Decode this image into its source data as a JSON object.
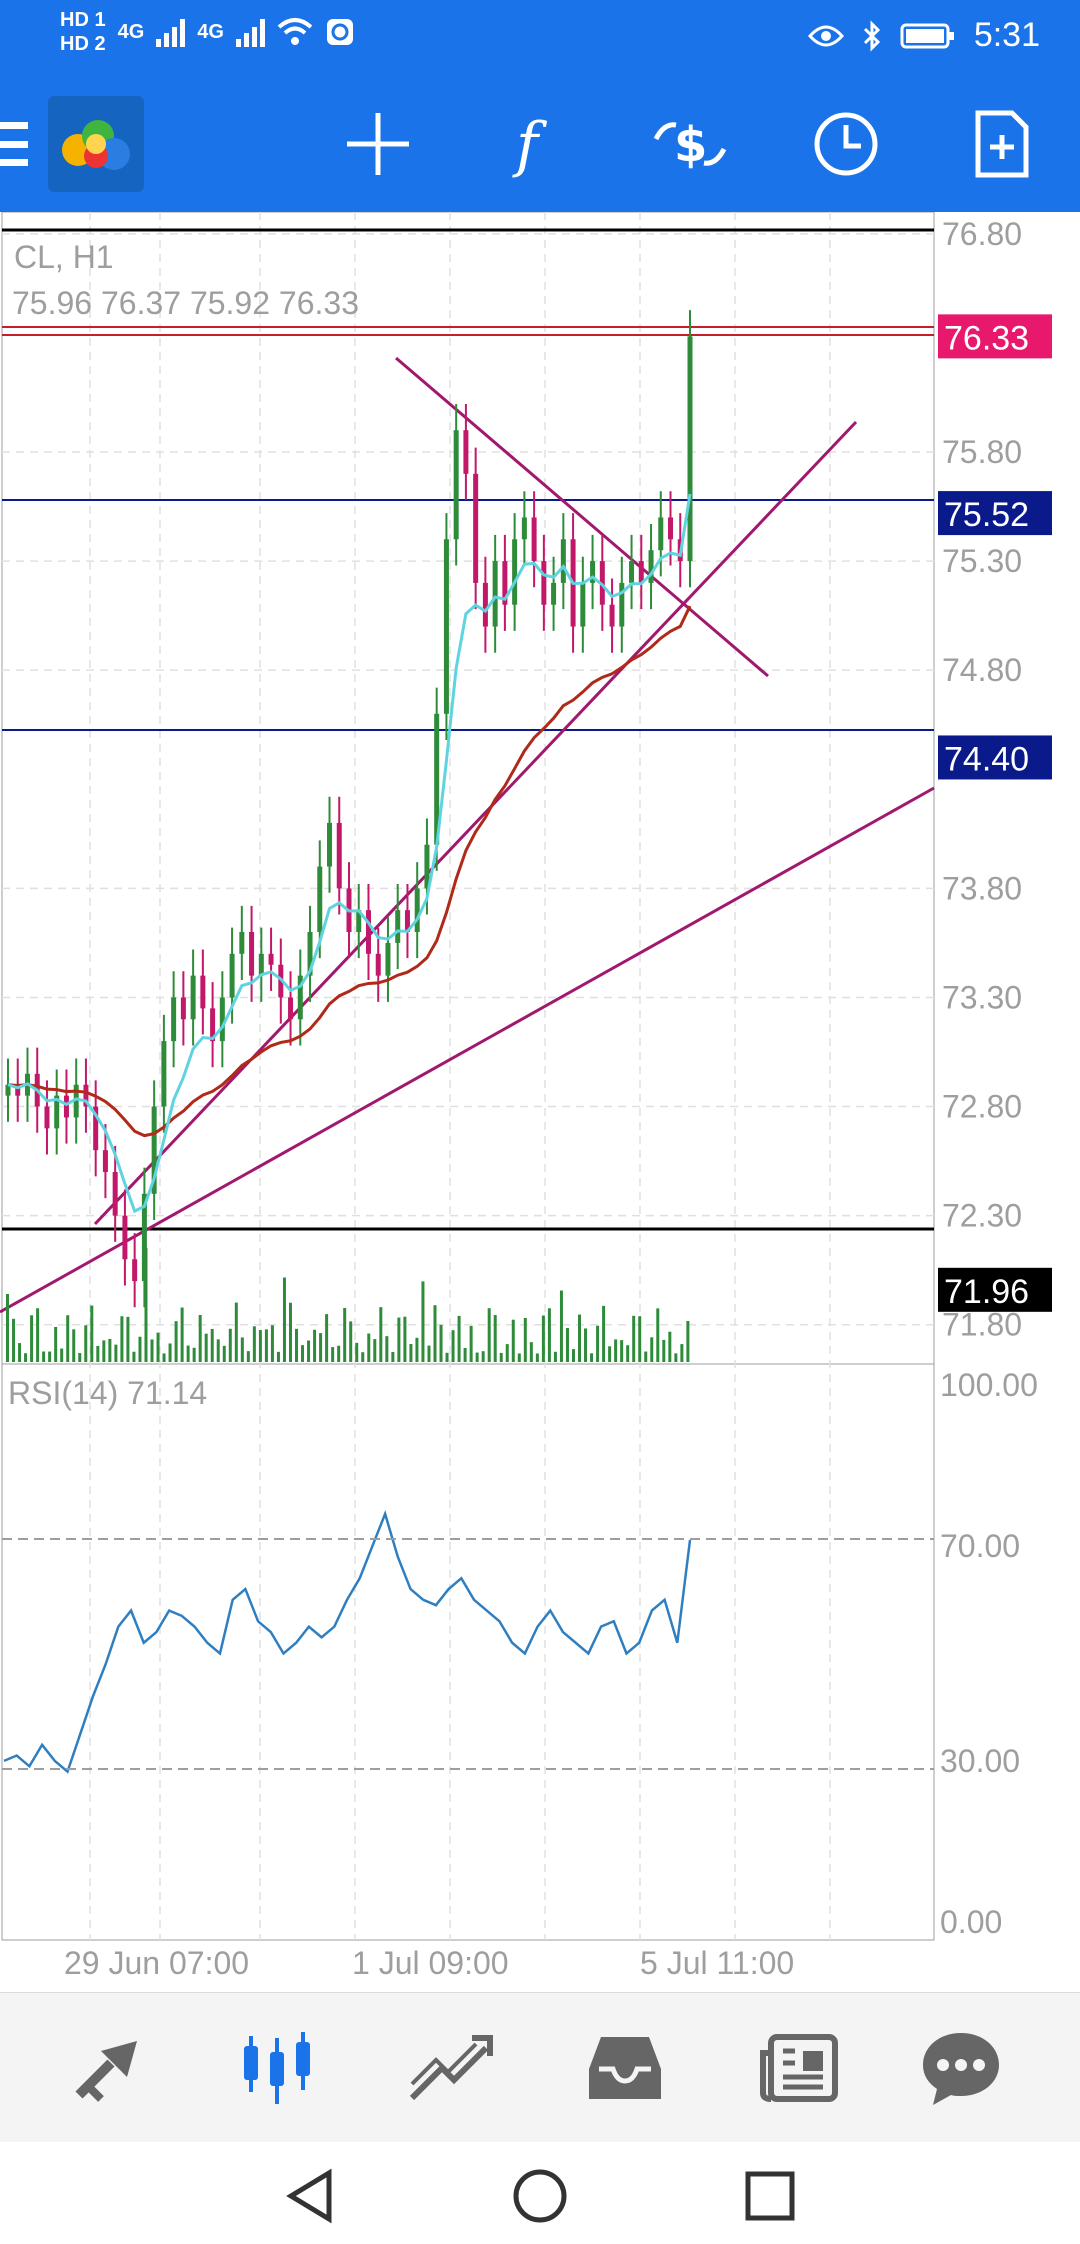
{
  "status_bar": {
    "hd1": "HD 1",
    "hd2": "HD 2",
    "net1": "4G",
    "net2": "4G",
    "time": "5:31"
  },
  "toolbar": {
    "icons": [
      "menu-icon",
      "metatrader-logo",
      "crosshair-icon",
      "indicators-f-icon",
      "trade-dollar-icon",
      "clock-icon",
      "new-document-icon"
    ]
  },
  "chart": {
    "symbol": "CL, H1",
    "ohlc": "75.96 76.37 75.92 76.33",
    "price_axis": [
      "76.80",
      "75.80",
      "75.30",
      "74.80",
      "73.80",
      "73.30",
      "72.80",
      "72.30",
      "71.80"
    ],
    "price_labels": [
      {
        "value": "76.33",
        "color": "#e8186d"
      },
      {
        "value": "75.52",
        "color": "#0a1a8a"
      },
      {
        "value": "74.40",
        "color": "#0a1a8a"
      },
      {
        "value": "71.96",
        "color": "#000000"
      }
    ],
    "rsi_label": "RSI(14) 71.14",
    "rsi_axis": [
      "100.00",
      "70.00",
      "30.00",
      "0.00"
    ],
    "time_axis": [
      "29 Jun 07:00",
      "1 Jul 09:00",
      "5 Jul 11:00"
    ],
    "colors": {
      "bull": "#2e8b3a",
      "bear": "#c2186a",
      "ma_fast": "#5fd4e0",
      "ma_slow": "#b02a1a",
      "trend": "#a0196e",
      "rsi": "#2f7fc0"
    }
  },
  "chart_data": {
    "type": "candlestick",
    "ylim": [
      71.62,
      76.9
    ],
    "rsi_ylim": [
      0,
      100
    ],
    "candles_sample_source": "visual estimate",
    "closes": [
      72.9,
      72.85,
      72.95,
      72.8,
      72.7,
      72.85,
      72.75,
      72.9,
      72.8,
      72.6,
      72.5,
      72.3,
      72.1,
      72.0,
      72.4,
      72.8,
      73.1,
      73.3,
      73.2,
      73.4,
      73.25,
      73.1,
      73.3,
      73.5,
      73.6,
      73.4,
      73.5,
      73.45,
      73.3,
      73.2,
      73.4,
      73.6,
      73.9,
      74.1,
      73.8,
      73.6,
      73.7,
      73.5,
      73.4,
      73.55,
      73.7,
      73.6,
      73.8,
      74.0,
      74.6,
      75.4,
      75.9,
      75.7,
      75.2,
      75.0,
      75.3,
      75.1,
      75.4,
      75.5,
      75.3,
      75.1,
      75.2,
      75.4,
      75.0,
      75.2,
      75.3,
      75.1,
      75.0,
      75.2,
      75.3,
      75.2,
      75.35,
      75.5,
      75.4,
      75.3,
      76.33
    ],
    "rsi": [
      30,
      31,
      29,
      33,
      30,
      28,
      35,
      42,
      48,
      55,
      58,
      52,
      54,
      58,
      57,
      55,
      52,
      50,
      60,
      62,
      56,
      54,
      50,
      52,
      55,
      53,
      55,
      60,
      64,
      70,
      76,
      68,
      62,
      60,
      59,
      62,
      64,
      60,
      58,
      56,
      52,
      50,
      55,
      58,
      54,
      52,
      50,
      55,
      56,
      50,
      52,
      58,
      60,
      52,
      71.14
    ]
  }
}
